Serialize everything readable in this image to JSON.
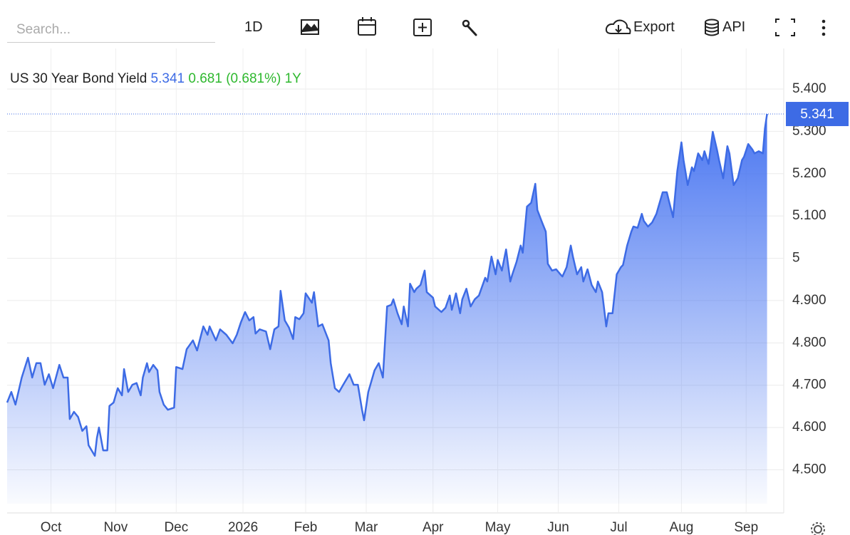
{
  "toolbar": {
    "search_placeholder": "Search...",
    "interval": "1D",
    "export": "Export",
    "api": "API"
  },
  "chart_data": {
    "type": "line",
    "title": "US 30 Year Bond Yield",
    "change": "0.681 (0.681%) 1Y",
    "x": [
      0,
      2,
      4,
      7,
      10,
      12,
      14,
      16,
      18,
      20,
      22,
      25,
      27,
      29,
      30,
      32,
      34,
      36,
      38,
      39,
      42,
      43,
      44,
      46,
      48,
      49,
      51,
      53,
      55,
      56,
      58,
      60,
      62,
      64,
      65,
      67,
      68,
      70,
      72,
      73,
      75,
      77,
      80,
      81,
      84,
      86,
      89,
      91,
      94,
      96,
      97,
      100,
      102,
      105,
      108,
      110,
      112,
      114,
      116,
      118,
      119,
      121,
      124,
      126,
      128,
      130,
      131,
      133,
      135,
      137,
      138,
      140,
      142,
      143,
      146,
      147,
      149,
      151,
      154,
      155,
      157,
      159,
      161,
      164,
      166,
      168,
      170,
      171,
      173,
      176,
      178,
      180,
      182,
      184,
      185,
      187,
      189,
      190,
      192,
      193,
      195,
      196,
      198,
      200,
      201,
      204,
      205,
      208,
      210,
      212,
      213,
      215,
      217,
      218,
      220,
      222,
      224,
      226,
      229,
      230,
      232,
      234,
      235,
      237,
      239,
      241,
      242,
      244,
      246,
      247,
      249,
      251,
      253,
      254,
      256,
      258,
      259,
      261,
      263,
      265,
      266,
      268,
      270,
      271,
      273,
      275,
      276,
      278,
      280,
      282,
      283,
      285,
      287,
      288,
      290,
      292,
      294,
      295,
      297,
      299,
      300,
      302,
      304,
      305,
      307,
      309,
      311,
      312,
      314,
      316,
      317,
      319,
      321,
      323,
      324,
      326,
      328,
      329,
      331,
      333,
      334,
      336,
      338,
      340,
      341,
      343,
      345,
      346,
      348,
      350,
      352,
      353,
      355,
      357,
      358,
      360,
      362,
      363,
      364
    ],
    "series": [
      {
        "name": "US 30 Year Bond Yield",
        "color": "#3d6be5",
        "values": [
          4.659,
          4.684,
          4.654,
          4.718,
          4.765,
          4.718,
          4.752,
          4.752,
          4.701,
          4.726,
          4.693,
          4.748,
          4.718,
          4.718,
          4.62,
          4.637,
          4.625,
          4.592,
          4.603,
          4.558,
          4.533,
          4.575,
          4.6,
          4.546,
          4.546,
          4.651,
          4.659,
          4.693,
          4.676,
          4.738,
          4.684,
          4.701,
          4.705,
          4.676,
          4.718,
          4.752,
          4.731,
          4.748,
          4.735,
          4.684,
          4.654,
          4.642,
          4.647,
          4.743,
          4.738,
          4.785,
          4.806,
          4.782,
          4.839,
          4.819,
          4.839,
          4.806,
          4.832,
          4.819,
          4.799,
          4.819,
          4.849,
          4.873,
          4.853,
          4.861,
          4.822,
          4.832,
          4.827,
          4.785,
          4.832,
          4.839,
          4.923,
          4.853,
          4.836,
          4.809,
          4.861,
          4.856,
          4.87,
          4.917,
          4.895,
          4.92,
          4.839,
          4.844,
          4.806,
          4.752,
          4.693,
          4.684,
          4.701,
          4.726,
          4.701,
          4.701,
          4.642,
          4.617,
          4.684,
          4.735,
          4.752,
          4.718,
          4.886,
          4.89,
          4.903,
          4.87,
          4.844,
          4.886,
          4.839,
          4.94,
          4.92,
          4.928,
          4.937,
          4.971,
          4.92,
          4.907,
          4.886,
          4.873,
          4.883,
          4.912,
          4.878,
          4.917,
          4.87,
          4.903,
          4.928,
          4.886,
          4.903,
          4.912,
          4.954,
          4.945,
          5.004,
          4.962,
          4.996,
          4.971,
          5.021,
          4.945,
          4.962,
          4.991,
          5.03,
          5.013,
          5.122,
          5.131,
          5.176,
          5.114,
          5.088,
          5.063,
          4.987,
          4.971,
          4.974,
          4.962,
          4.957,
          4.979,
          5.03,
          5.004,
          4.962,
          4.979,
          4.945,
          4.974,
          4.937,
          4.92,
          4.945,
          4.92,
          4.839,
          4.87,
          4.87,
          4.962,
          4.979,
          4.984,
          5.03,
          5.063,
          5.075,
          5.072,
          5.105,
          5.088,
          5.075,
          5.085,
          5.105,
          5.122,
          5.156,
          5.156,
          5.136,
          5.097,
          5.206,
          5.274,
          5.232,
          5.173,
          5.215,
          5.206,
          5.248,
          5.232,
          5.253,
          5.223,
          5.299,
          5.257,
          5.232,
          5.189,
          5.265,
          5.248,
          5.173,
          5.189,
          5.232,
          5.24,
          5.27,
          5.257,
          5.248,
          5.253,
          5.248,
          5.307,
          5.341
        ]
      }
    ],
    "xlim": [
      0,
      372
    ],
    "xticks": [
      {
        "value": 21,
        "label": "Oct"
      },
      {
        "value": 52,
        "label": "Nov"
      },
      {
        "value": 81,
        "label": "Dec"
      },
      {
        "value": 113,
        "label": "2026"
      },
      {
        "value": 143,
        "label": "Feb"
      },
      {
        "value": 172,
        "label": "Mar"
      },
      {
        "value": 204,
        "label": "Apr"
      },
      {
        "value": 235,
        "label": "May"
      },
      {
        "value": 264,
        "label": "Jun"
      },
      {
        "value": 293,
        "label": "Jul"
      },
      {
        "value": 323,
        "label": "Aug"
      },
      {
        "value": 354,
        "label": "Sep"
      }
    ],
    "ylim": [
      4.42,
      5.5
    ],
    "yticks": [
      {
        "value": 4.5,
        "label": "4.500"
      },
      {
        "value": 4.6,
        "label": "4.600"
      },
      {
        "value": 4.7,
        "label": "4.700"
      },
      {
        "value": 4.8,
        "label": "4.800"
      },
      {
        "value": 4.9,
        "label": "4.900"
      },
      5,
      {
        "value": 5.1,
        "label": "5.100"
      },
      {
        "value": 5.2,
        "label": "5.200"
      },
      {
        "value": 5.3,
        "label": "5.300"
      },
      {
        "value": 5.4,
        "label": "5.400"
      }
    ],
    "grid": true
  }
}
